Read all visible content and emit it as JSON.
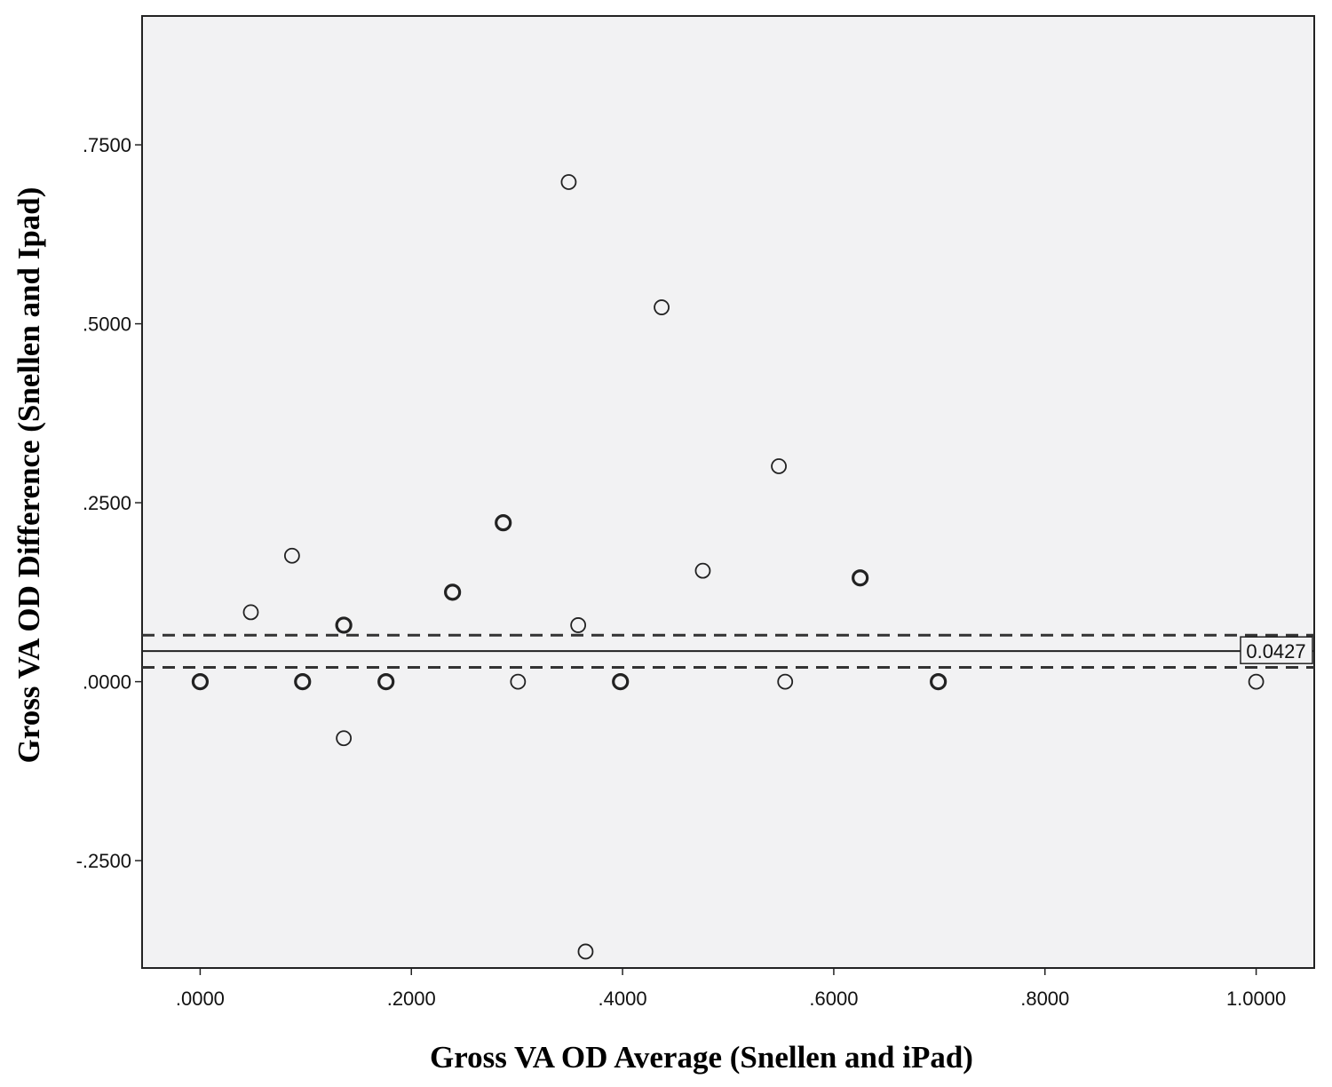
{
  "chart_data": {
    "type": "scatter",
    "xlabel": "Gross VA OD Average (Snellen and iPad)",
    "ylabel": "Gross VA OD Difference (Snellen and Ipad)",
    "xlim": [
      -0.055,
      1.055
    ],
    "ylim": [
      -0.4,
      0.93
    ],
    "x_ticks": [
      0.0,
      0.2,
      0.4,
      0.6,
      0.8,
      1.0
    ],
    "x_tick_labels": [
      ".0000",
      ".2000",
      ".4000",
      ".6000",
      ".8000",
      "1.0000"
    ],
    "y_ticks": [
      -0.25,
      0.0,
      0.25,
      0.5,
      0.75
    ],
    "y_tick_labels": [
      "-.2500",
      ".0000",
      ".2500",
      ".5000",
      ".7500"
    ],
    "grid": false,
    "background_color": "#f2f2f3",
    "mean_line": {
      "y": 0.0427,
      "label": "0.0427",
      "style": "solid"
    },
    "ci_lines": [
      {
        "y": 0.065,
        "style": "dashed"
      },
      {
        "y": 0.02,
        "style": "dashed"
      }
    ],
    "points": [
      {
        "x": 0.0,
        "y": 0.0,
        "overlap": true
      },
      {
        "x": 0.048,
        "y": 0.097,
        "overlap": false
      },
      {
        "x": 0.087,
        "y": 0.176,
        "overlap": false
      },
      {
        "x": 0.097,
        "y": 0.0,
        "overlap": true
      },
      {
        "x": 0.136,
        "y": 0.079,
        "overlap": true
      },
      {
        "x": 0.136,
        "y": -0.079,
        "overlap": false
      },
      {
        "x": 0.176,
        "y": 0.0,
        "overlap": true
      },
      {
        "x": 0.239,
        "y": 0.125,
        "overlap": true
      },
      {
        "x": 0.287,
        "y": 0.222,
        "overlap": true
      },
      {
        "x": 0.301,
        "y": 0.0,
        "overlap": false
      },
      {
        "x": 0.349,
        "y": 0.698,
        "overlap": false
      },
      {
        "x": 0.358,
        "y": 0.079,
        "overlap": false
      },
      {
        "x": 0.365,
        "y": -0.377,
        "overlap": false
      },
      {
        "x": 0.398,
        "y": 0.0,
        "overlap": true
      },
      {
        "x": 0.437,
        "y": 0.523,
        "overlap": false
      },
      {
        "x": 0.476,
        "y": 0.155,
        "overlap": false
      },
      {
        "x": 0.548,
        "y": 0.301,
        "overlap": false
      },
      {
        "x": 0.554,
        "y": 0.0,
        "overlap": false
      },
      {
        "x": 0.625,
        "y": 0.145,
        "overlap": true
      },
      {
        "x": 0.699,
        "y": 0.0,
        "overlap": true
      },
      {
        "x": 1.0,
        "y": 0.0,
        "overlap": false
      }
    ]
  }
}
